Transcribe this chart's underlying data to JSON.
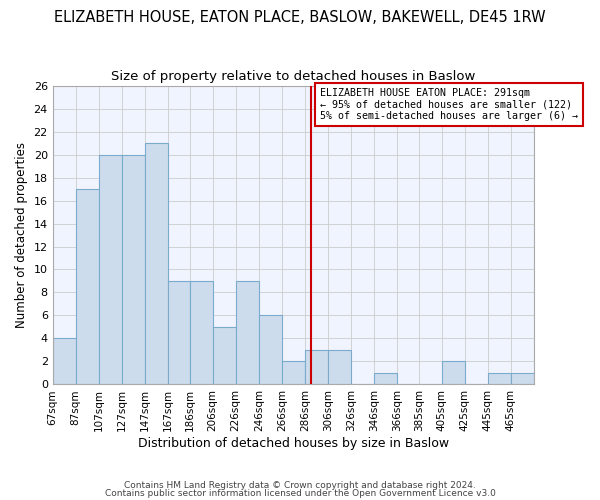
{
  "title": "ELIZABETH HOUSE, EATON PLACE, BASLOW, BAKEWELL, DE45 1RW",
  "subtitle": "Size of property relative to detached houses in Baslow",
  "xlabel": "Distribution of detached houses by size in Baslow",
  "ylabel": "Number of detached properties",
  "categories": [
    "67sqm",
    "87sqm",
    "107sqm",
    "127sqm",
    "147sqm",
    "167sqm",
    "186sqm",
    "206sqm",
    "226sqm",
    "246sqm",
    "266sqm",
    "286sqm",
    "306sqm",
    "326sqm",
    "346sqm",
    "366sqm",
    "385sqm",
    "405sqm",
    "425sqm",
    "445sqm",
    "465sqm"
  ],
  "values": [
    4,
    17,
    20,
    20,
    21,
    9,
    9,
    5,
    9,
    6,
    2,
    3,
    3,
    0,
    1,
    0,
    0,
    2,
    0,
    1,
    1
  ],
  "bar_color": "#ccdcec",
  "bar_edge_color": "#7aaacc",
  "grid_color": "#cccccc",
  "vline_x": 291,
  "vline_color": "#cc0000",
  "annotation_text": "ELIZABETH HOUSE EATON PLACE: 291sqm\n← 95% of detached houses are smaller (122)\n5% of semi-detached houses are larger (6) →",
  "annotation_box_color": "#ffffff",
  "annotation_box_edge_color": "#cc0000",
  "ylim": [
    0,
    26
  ],
  "yticks": [
    0,
    2,
    4,
    6,
    8,
    10,
    12,
    14,
    16,
    18,
    20,
    22,
    24,
    26
  ],
  "footer1": "Contains HM Land Registry data © Crown copyright and database right 2024.",
  "footer2": "Contains public sector information licensed under the Open Government Licence v3.0",
  "bg_color": "#ffffff",
  "plot_bg_color": "#f0f4ff",
  "title_fontsize": 10.5,
  "subtitle_fontsize": 9.5
}
